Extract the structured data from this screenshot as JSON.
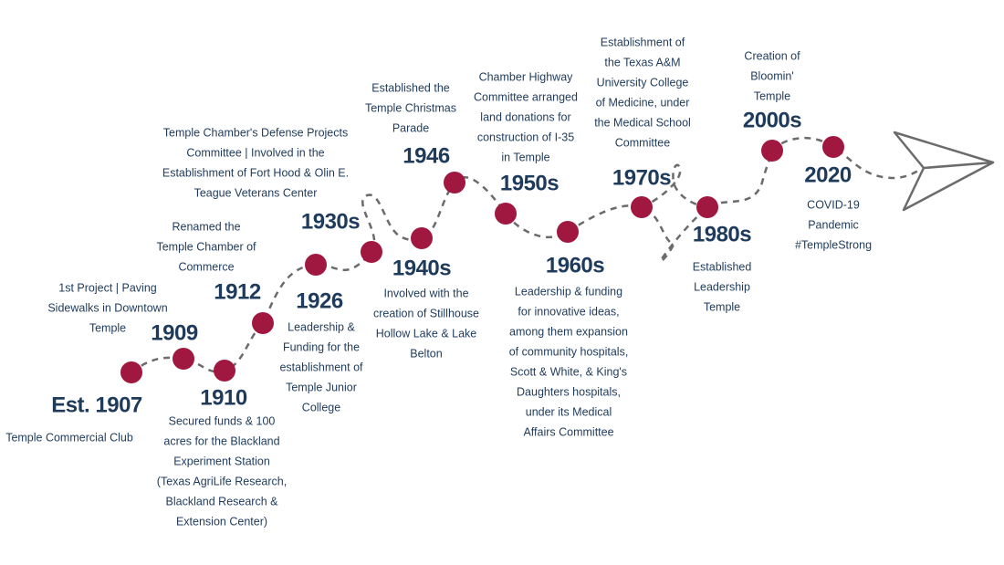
{
  "events": [
    {
      "year": "Est. 1907",
      "lines": [
        "Temple Commercial Club"
      ]
    },
    {
      "year": "1909",
      "lines": [
        "1st Project | Paving",
        "Sidewalks in Downtown",
        "Temple"
      ]
    },
    {
      "year": "1910",
      "lines": [
        "Secured funds & 100",
        "acres for the Blackland",
        "Experiment Station",
        "(Texas AgriLife Research,",
        "Blackland Research &",
        "Extension Center)"
      ]
    },
    {
      "year": "1912",
      "lines": [
        "Renamed the",
        "Temple Chamber of",
        "Commerce"
      ]
    },
    {
      "year": "1926",
      "lines": [
        "Leadership &",
        "Funding for the",
        "establishment of",
        "Temple Junior",
        "College"
      ]
    },
    {
      "year": "1930s",
      "lines": [
        "Temple Chamber's Defense Projects",
        "Committee | Involved in the",
        "Establishment of Fort Hood & Olin E.",
        "Teague Veterans Center"
      ]
    },
    {
      "year": "1940s",
      "lines": [
        "Involved with the",
        "creation of Stillhouse",
        "Hollow Lake & Lake",
        "Belton"
      ]
    },
    {
      "year": "1946",
      "lines": [
        "Established the",
        "Temple Christmas",
        "Parade"
      ]
    },
    {
      "year": "1950s",
      "lines": [
        "Chamber Highway",
        "Committee arranged",
        "land donations for",
        "construction of I-35",
        "in Temple"
      ]
    },
    {
      "year": "1960s",
      "lines": [
        "Leadership & funding",
        "for innovative ideas,",
        "among them expansion",
        "of community hospitals,",
        "Scott & White, & King's",
        "Daughters hospitals,",
        "under its Medical",
        "Affairs Committee"
      ]
    },
    {
      "year": "1970s",
      "lines": [
        "Establishment of",
        "the Texas A&M",
        "University College",
        "of Medicine, under",
        "the Medical School",
        "Committee"
      ]
    },
    {
      "year": "1980s",
      "lines": [
        "Established",
        "Leadership",
        "Temple"
      ]
    },
    {
      "year": "2000s",
      "lines": [
        "Creation of",
        "Bloomin'",
        "Temple"
      ]
    },
    {
      "year": "2020",
      "lines": [
        "COVID-19",
        "Pandemic",
        "#TempleStrong"
      ]
    }
  ]
}
